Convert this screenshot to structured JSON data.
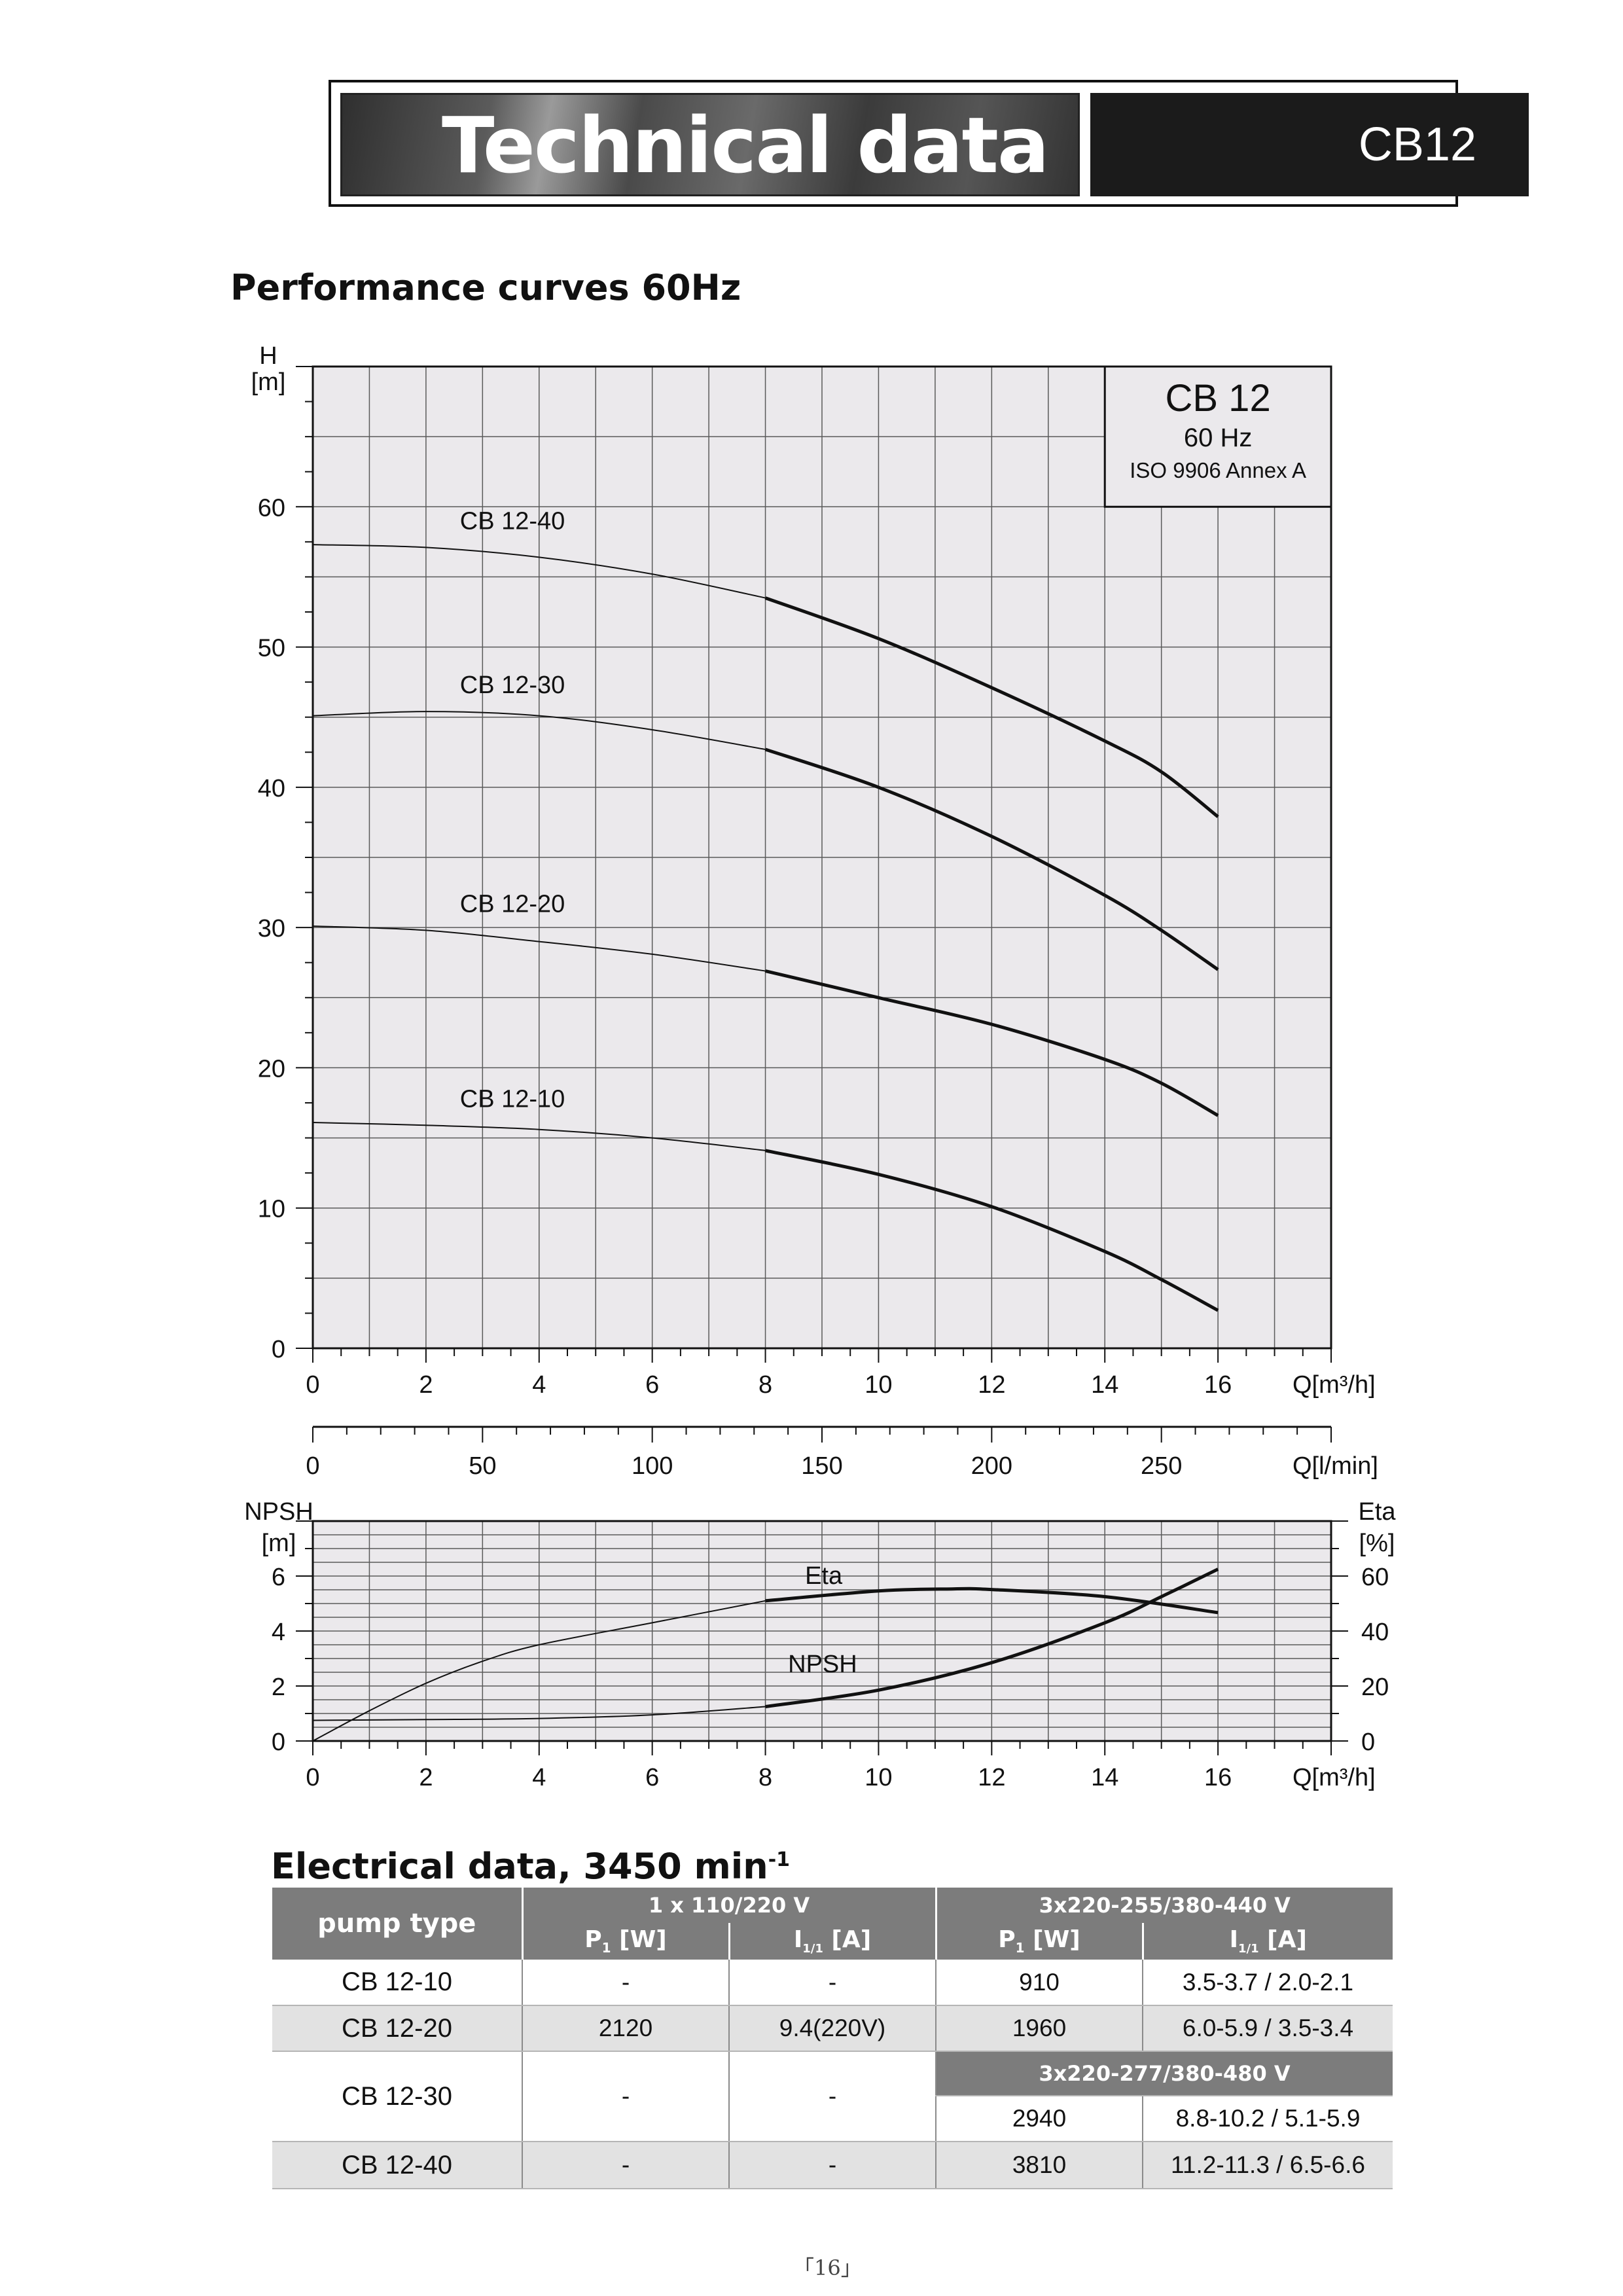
{
  "header": {
    "title": "Technical data",
    "model": "CB12"
  },
  "performance_heading": "Performance curves 60Hz",
  "electrical_heading": "Electrical data, 3450 min",
  "electrical_heading_sup": "-1",
  "page_number": "「16」",
  "chart_data": [
    {
      "type": "line",
      "name": "head-curves",
      "title": "CB 12",
      "subtitle": "60 Hz",
      "note": "ISO 9906 Annex A",
      "xlabel": "Q[m³/h]",
      "ylabel": "H\n[m]",
      "xlim": [
        0,
        18
      ],
      "ylim": [
        0,
        70
      ],
      "xticks": [
        0,
        2,
        4,
        6,
        8,
        10,
        12,
        14,
        16
      ],
      "yticks": [
        0,
        10,
        20,
        30,
        40,
        50,
        60
      ],
      "grid": true,
      "bold_from_x": 8,
      "series": [
        {
          "name": "CB 12-40",
          "x": [
            0,
            2,
            4,
            6,
            8,
            10,
            12,
            14,
            15,
            16
          ],
          "y": [
            57.3,
            57.1,
            56.4,
            55.2,
            53.5,
            50.6,
            47.1,
            43.3,
            41.1,
            37.9
          ]
        },
        {
          "name": "CB 12-30",
          "x": [
            0,
            2,
            4,
            6,
            8,
            10,
            12,
            14,
            15,
            16
          ],
          "y": [
            45.1,
            45.4,
            45.1,
            44.1,
            42.7,
            40.0,
            36.5,
            32.3,
            29.8,
            27.0
          ]
        },
        {
          "name": "CB 12-20",
          "x": [
            0,
            2,
            4,
            6,
            8,
            10,
            12,
            14,
            15,
            16
          ],
          "y": [
            30.1,
            29.8,
            29.0,
            28.1,
            26.9,
            25.0,
            23.1,
            20.6,
            18.9,
            16.6
          ]
        },
        {
          "name": "CB 12-10",
          "x": [
            0,
            2,
            4,
            6,
            8,
            10,
            12,
            14,
            15,
            16
          ],
          "y": [
            16.1,
            15.9,
            15.6,
            15.0,
            14.1,
            12.4,
            10.1,
            6.9,
            4.9,
            2.7
          ]
        }
      ]
    },
    {
      "type": "axis",
      "name": "flow-scale",
      "xlabel": "Q[l/min]",
      "xlim": [
        0,
        300
      ],
      "xticks": [
        0,
        50,
        100,
        150,
        200,
        250
      ]
    },
    {
      "type": "line",
      "name": "npsh-eta",
      "ylabel_left": "NPSH\n[m]",
      "ylabel_right": "Eta\n[%]",
      "xlabel": "Q[m³/h]",
      "xlim": [
        0,
        18
      ],
      "ylim_left": [
        0,
        8
      ],
      "ylim_right": [
        0,
        80
      ],
      "xticks": [
        0,
        2,
        4,
        6,
        8,
        10,
        12,
        14,
        16
      ],
      "yticks_left": [
        0,
        2,
        4,
        6
      ],
      "yticks_right": [
        0,
        20,
        40,
        60
      ],
      "grid": true,
      "bold_from_x": 8,
      "series": [
        {
          "name": "Eta",
          "axis": "right",
          "x": [
            0,
            1,
            2,
            3,
            4,
            6,
            8,
            10,
            11.3,
            12,
            14,
            16
          ],
          "y": [
            0,
            11,
            21,
            29,
            35,
            43,
            51,
            54.6,
            55.3,
            55.1,
            52.5,
            46.7
          ]
        },
        {
          "name": "NPSH",
          "axis": "left",
          "x": [
            0,
            2,
            4,
            6,
            8,
            10,
            12,
            14,
            15,
            16
          ],
          "y": [
            0.75,
            0.78,
            0.82,
            0.95,
            1.25,
            1.85,
            2.85,
            4.3,
            5.25,
            6.25
          ]
        }
      ]
    }
  ],
  "electrical_table": {
    "col_pump_type": "pump type",
    "group1": "1 x 110/220 V",
    "group2": "3x220-255/380-440  V",
    "p_label": "P",
    "p_sub": "1",
    "p_unit": " [W]",
    "i_label": "I",
    "i_sub": "1/1",
    "i_unit": " [A]",
    "subheader": "3x220-277/380-480  V",
    "rows": [
      {
        "type": "CB 12-10",
        "p1": "-",
        "i1": "-",
        "p3": "910",
        "i3": "3.5-3.7 / 2.0-2.1"
      },
      {
        "type": "CB 12-20",
        "p1": "2120",
        "i1": "9.4(220V)",
        "p3": "1960",
        "i3": "6.0-5.9 / 3.5-3.4"
      },
      {
        "type": "CB 12-30",
        "p1": "-",
        "i1": "-",
        "p3": "2940",
        "i3": "8.8-10.2 / 5.1-5.9"
      },
      {
        "type": "CB 12-40",
        "p1": "-",
        "i1": "-",
        "p3": "3810",
        "i3": "11.2-11.3 / 6.5-6.6"
      }
    ]
  }
}
